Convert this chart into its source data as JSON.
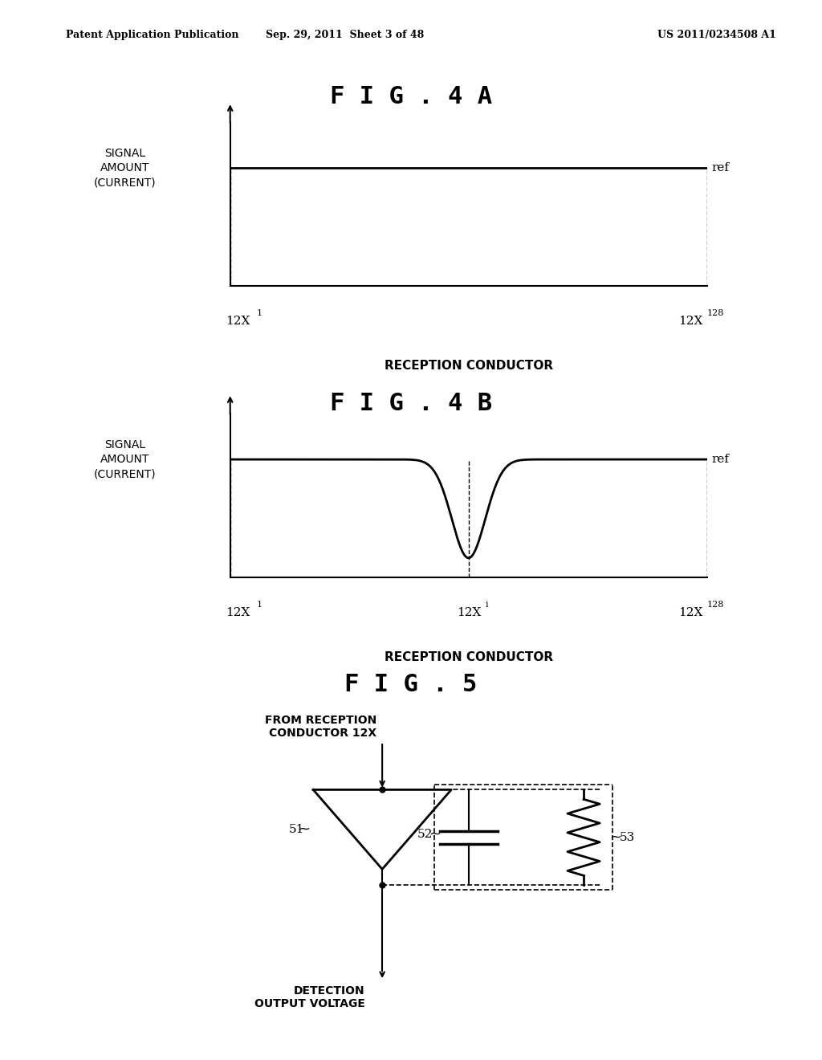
{
  "bg_color": "#ffffff",
  "text_color": "#000000",
  "header_left": "Patent Application Publication",
  "header_center": "Sep. 29, 2011  Sheet 3 of 48",
  "header_right": "US 2011/0234508 A1",
  "fig4a_title": "F I G . 4 A",
  "fig4b_title": "F I G . 4 B",
  "fig5_title": "F I G . 5",
  "ylabel_text": "SIGNAL\nAMOUNT\n(CURRENT)",
  "xlabel_text": "RECEPTION CONDUCTOR",
  "ref_label": "ref",
  "x1_label": "12X",
  "x1_sub": "1",
  "x128_label": "12X",
  "x128_sub": "128",
  "xi_label": "12X",
  "xi_sub": "i",
  "label51": "51",
  "label52": "52",
  "label53": "53",
  "from_text": "FROM RECEPTION\nCONDUCTOR 12X",
  "detection_text": "DETECTION\nOUTPUT VOLTAGE"
}
